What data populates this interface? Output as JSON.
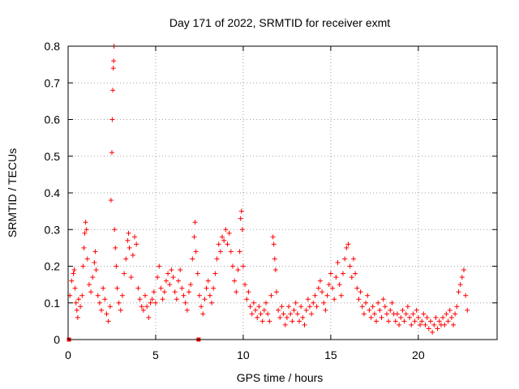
{
  "chart_data": {
    "type": "scatter",
    "title": "Day 171 of 2022, SRMTID for receiver exmt",
    "xlabel": "GPS time / hours",
    "ylabel": "SRMTID / TECUs",
    "xlim": [
      0,
      24.5
    ],
    "ylim": [
      0,
      0.8
    ],
    "x_ticks": [
      0,
      5,
      10,
      15,
      20
    ],
    "y_ticks": [
      0,
      0.1,
      0.2,
      0.3,
      0.4,
      0.5,
      0.6,
      0.7,
      0.8
    ],
    "x_tick_labels": [
      "0",
      "5",
      "10",
      "15",
      "20"
    ],
    "y_tick_labels": [
      "0",
      "0.1",
      "0.2",
      "0.3",
      "0.4",
      "0.5",
      "0.6",
      "0.7",
      "0.8"
    ],
    "grid": true,
    "marker": "+",
    "color": "#ff0000",
    "zero_markers": [
      [
        0.05,
        0.0
      ],
      [
        7.45,
        0.0
      ]
    ],
    "series": [
      {
        "name": "SRMTID",
        "points": [
          [
            0.1,
            0.12
          ],
          [
            0.2,
            0.16
          ],
          [
            0.3,
            0.18
          ],
          [
            0.35,
            0.19
          ],
          [
            0.4,
            0.14
          ],
          [
            0.45,
            0.1
          ],
          [
            0.5,
            0.08
          ],
          [
            0.55,
            0.06
          ],
          [
            0.6,
            0.11
          ],
          [
            0.7,
            0.09
          ],
          [
            0.8,
            0.12
          ],
          [
            0.85,
            0.2
          ],
          [
            0.9,
            0.25
          ],
          [
            0.95,
            0.29
          ],
          [
            1.0,
            0.32
          ],
          [
            1.05,
            0.3
          ],
          [
            1.1,
            0.22
          ],
          [
            1.2,
            0.15
          ],
          [
            1.3,
            0.13
          ],
          [
            1.4,
            0.17
          ],
          [
            1.5,
            0.21
          ],
          [
            1.55,
            0.24
          ],
          [
            1.6,
            0.19
          ],
          [
            1.7,
            0.12
          ],
          [
            1.8,
            0.1
          ],
          [
            1.9,
            0.08
          ],
          [
            2.0,
            0.14
          ],
          [
            2.1,
            0.11
          ],
          [
            2.2,
            0.07
          ],
          [
            2.3,
            0.05
          ],
          [
            2.4,
            0.09
          ],
          [
            2.45,
            0.38
          ],
          [
            2.5,
            0.51
          ],
          [
            2.52,
            0.6
          ],
          [
            2.55,
            0.68
          ],
          [
            2.58,
            0.74
          ],
          [
            2.6,
            0.76
          ],
          [
            2.62,
            0.8
          ],
          [
            2.65,
            0.3
          ],
          [
            2.7,
            0.25
          ],
          [
            2.75,
            0.2
          ],
          [
            2.8,
            0.14
          ],
          [
            2.9,
            0.1
          ],
          [
            3.0,
            0.08
          ],
          [
            3.1,
            0.12
          ],
          [
            3.2,
            0.18
          ],
          [
            3.3,
            0.22
          ],
          [
            3.4,
            0.27
          ],
          [
            3.45,
            0.29
          ],
          [
            3.5,
            0.25
          ],
          [
            3.6,
            0.17
          ],
          [
            3.7,
            0.23
          ],
          [
            3.8,
            0.28
          ],
          [
            3.9,
            0.26
          ],
          [
            4.0,
            0.14
          ],
          [
            4.1,
            0.11
          ],
          [
            4.2,
            0.09
          ],
          [
            4.3,
            0.08
          ],
          [
            4.4,
            0.12
          ],
          [
            4.5,
            0.09
          ],
          [
            4.6,
            0.06
          ],
          [
            4.7,
            0.1
          ],
          [
            4.8,
            0.11
          ],
          [
            4.9,
            0.13
          ],
          [
            5.0,
            0.1
          ],
          [
            5.1,
            0.17
          ],
          [
            5.2,
            0.2
          ],
          [
            5.3,
            0.14
          ],
          [
            5.4,
            0.11
          ],
          [
            5.5,
            0.13
          ],
          [
            5.6,
            0.16
          ],
          [
            5.7,
            0.18
          ],
          [
            5.8,
            0.15
          ],
          [
            5.9,
            0.19
          ],
          [
            6.0,
            0.17
          ],
          [
            6.1,
            0.13
          ],
          [
            6.2,
            0.11
          ],
          [
            6.3,
            0.16
          ],
          [
            6.4,
            0.19
          ],
          [
            6.5,
            0.14
          ],
          [
            6.6,
            0.12
          ],
          [
            6.7,
            0.1
          ],
          [
            6.8,
            0.08
          ],
          [
            6.9,
            0.13
          ],
          [
            7.0,
            0.15
          ],
          [
            7.1,
            0.22
          ],
          [
            7.2,
            0.28
          ],
          [
            7.25,
            0.32
          ],
          [
            7.3,
            0.24
          ],
          [
            7.4,
            0.18
          ],
          [
            7.5,
            0.12
          ],
          [
            7.6,
            0.09
          ],
          [
            7.7,
            0.07
          ],
          [
            7.8,
            0.11
          ],
          [
            7.9,
            0.14
          ],
          [
            8.0,
            0.16
          ],
          [
            8.1,
            0.12
          ],
          [
            8.2,
            0.1
          ],
          [
            8.3,
            0.14
          ],
          [
            8.4,
            0.18
          ],
          [
            8.5,
            0.22
          ],
          [
            8.6,
            0.26
          ],
          [
            8.7,
            0.24
          ],
          [
            8.8,
            0.28
          ],
          [
            8.9,
            0.27
          ],
          [
            9.0,
            0.3
          ],
          [
            9.1,
            0.26
          ],
          [
            9.2,
            0.29
          ],
          [
            9.3,
            0.24
          ],
          [
            9.4,
            0.2
          ],
          [
            9.5,
            0.16
          ],
          [
            9.6,
            0.13
          ],
          [
            9.7,
            0.19
          ],
          [
            9.8,
            0.24
          ],
          [
            9.85,
            0.33
          ],
          [
            9.9,
            0.35
          ],
          [
            9.95,
            0.3
          ],
          [
            10.0,
            0.2
          ],
          [
            10.1,
            0.15
          ],
          [
            10.2,
            0.11
          ],
          [
            10.3,
            0.13
          ],
          [
            10.4,
            0.09
          ],
          [
            10.5,
            0.07
          ],
          [
            10.6,
            0.1
          ],
          [
            10.7,
            0.08
          ],
          [
            10.8,
            0.06
          ],
          [
            10.9,
            0.09
          ],
          [
            11.0,
            0.07
          ],
          [
            11.1,
            0.05
          ],
          [
            11.2,
            0.08
          ],
          [
            11.3,
            0.1
          ],
          [
            11.4,
            0.07
          ],
          [
            11.5,
            0.05
          ],
          [
            11.6,
            0.12
          ],
          [
            11.7,
            0.28
          ],
          [
            11.75,
            0.26
          ],
          [
            11.8,
            0.22
          ],
          [
            11.85,
            0.19
          ],
          [
            11.9,
            0.13
          ],
          [
            12.0,
            0.08
          ],
          [
            12.1,
            0.06
          ],
          [
            12.2,
            0.09
          ],
          [
            12.3,
            0.07
          ],
          [
            12.4,
            0.04
          ],
          [
            12.5,
            0.06
          ],
          [
            12.6,
            0.09
          ],
          [
            12.7,
            0.07
          ],
          [
            12.8,
            0.05
          ],
          [
            12.9,
            0.08
          ],
          [
            13.0,
            0.1
          ],
          [
            13.1,
            0.07
          ],
          [
            13.2,
            0.05
          ],
          [
            13.3,
            0.09
          ],
          [
            13.4,
            0.06
          ],
          [
            13.5,
            0.04
          ],
          [
            13.6,
            0.08
          ],
          [
            13.7,
            0.11
          ],
          [
            13.8,
            0.09
          ],
          [
            13.9,
            0.07
          ],
          [
            14.0,
            0.1
          ],
          [
            14.1,
            0.12
          ],
          [
            14.2,
            0.09
          ],
          [
            14.3,
            0.14
          ],
          [
            14.4,
            0.16
          ],
          [
            14.5,
            0.13
          ],
          [
            14.6,
            0.1
          ],
          [
            14.7,
            0.08
          ],
          [
            14.8,
            0.12
          ],
          [
            14.9,
            0.15
          ],
          [
            15.0,
            0.18
          ],
          [
            15.1,
            0.14
          ],
          [
            15.2,
            0.11
          ],
          [
            15.3,
            0.17
          ],
          [
            15.4,
            0.21
          ],
          [
            15.5,
            0.15
          ],
          [
            15.6,
            0.12
          ],
          [
            15.7,
            0.18
          ],
          [
            15.8,
            0.22
          ],
          [
            15.9,
            0.25
          ],
          [
            16.0,
            0.26
          ],
          [
            16.1,
            0.2
          ],
          [
            16.2,
            0.17
          ],
          [
            16.3,
            0.22
          ],
          [
            16.4,
            0.18
          ],
          [
            16.5,
            0.14
          ],
          [
            16.6,
            0.11
          ],
          [
            16.7,
            0.13
          ],
          [
            16.8,
            0.09
          ],
          [
            16.9,
            0.07
          ],
          [
            17.0,
            0.1
          ],
          [
            17.1,
            0.12
          ],
          [
            17.2,
            0.08
          ],
          [
            17.3,
            0.06
          ],
          [
            17.4,
            0.09
          ],
          [
            17.5,
            0.07
          ],
          [
            17.6,
            0.05
          ],
          [
            17.7,
            0.1
          ],
          [
            17.8,
            0.08
          ],
          [
            17.9,
            0.06
          ],
          [
            18.0,
            0.11
          ],
          [
            18.1,
            0.09
          ],
          [
            18.2,
            0.07
          ],
          [
            18.3,
            0.05
          ],
          [
            18.4,
            0.08
          ],
          [
            18.5,
            0.1
          ],
          [
            18.6,
            0.07
          ],
          [
            18.7,
            0.05
          ],
          [
            18.8,
            0.07
          ],
          [
            18.9,
            0.04
          ],
          [
            19.0,
            0.06
          ],
          [
            19.1,
            0.08
          ],
          [
            19.2,
            0.05
          ],
          [
            19.3,
            0.07
          ],
          [
            19.4,
            0.09
          ],
          [
            19.5,
            0.06
          ],
          [
            19.6,
            0.04
          ],
          [
            19.7,
            0.07
          ],
          [
            19.8,
            0.05
          ],
          [
            19.9,
            0.08
          ],
          [
            20.0,
            0.06
          ],
          [
            20.1,
            0.04
          ],
          [
            20.2,
            0.05
          ],
          [
            20.3,
            0.07
          ],
          [
            20.4,
            0.04
          ],
          [
            20.5,
            0.06
          ],
          [
            20.6,
            0.03
          ],
          [
            20.7,
            0.05
          ],
          [
            20.8,
            0.02
          ],
          [
            20.9,
            0.04
          ],
          [
            21.0,
            0.06
          ],
          [
            21.1,
            0.03
          ],
          [
            21.2,
            0.05
          ],
          [
            21.3,
            0.04
          ],
          [
            21.4,
            0.06
          ],
          [
            21.5,
            0.04
          ],
          [
            21.6,
            0.07
          ],
          [
            21.7,
            0.05
          ],
          [
            21.8,
            0.08
          ],
          [
            21.9,
            0.06
          ],
          [
            22.0,
            0.04
          ],
          [
            22.1,
            0.07
          ],
          [
            22.2,
            0.09
          ],
          [
            22.3,
            0.13
          ],
          [
            22.4,
            0.15
          ],
          [
            22.5,
            0.17
          ],
          [
            22.6,
            0.19
          ],
          [
            22.7,
            0.12
          ],
          [
            22.8,
            0.08
          ]
        ]
      }
    ]
  }
}
